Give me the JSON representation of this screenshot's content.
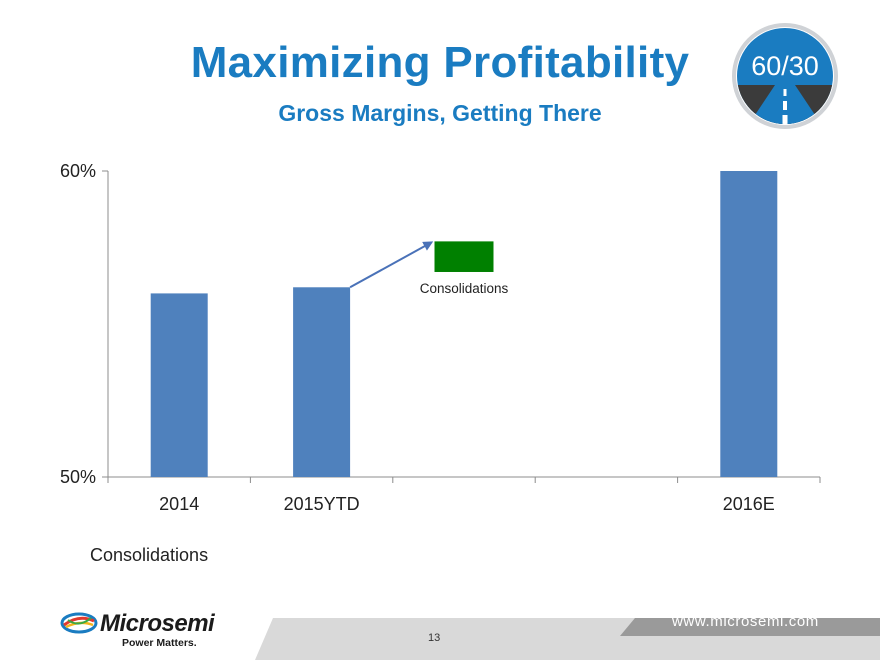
{
  "slide": {
    "title": "Maximizing Profitability",
    "subtitle": "Gross Margins, Getting There",
    "badge_text": "60/30",
    "page_number": "13",
    "url": "www.microsemi.com",
    "logo_word": "Microsemi",
    "logo_tagline": "Power Matters.",
    "legend_label": "Consolidations"
  },
  "colors": {
    "title": "#1a7cc1",
    "bar": "#4f81bd",
    "consolidation": "#008000",
    "arrow": "#4a72b8"
  },
  "chart_data": {
    "type": "bar",
    "categories": [
      "2014",
      "2015YTD",
      "",
      "",
      "2016E"
    ],
    "values": [
      56,
      56.2,
      null,
      null,
      60
    ],
    "floating": [
      {
        "category_index": 2,
        "label": "Consolidations",
        "low": 56.7,
        "high": 57.7,
        "offset_from": 1
      }
    ],
    "ylim": [
      50,
      60
    ],
    "y_ticks": [
      "50%",
      "60%"
    ],
    "y_tick_values": [
      50,
      60
    ],
    "annotation": {
      "text": "Consolidations"
    },
    "grid": false
  }
}
